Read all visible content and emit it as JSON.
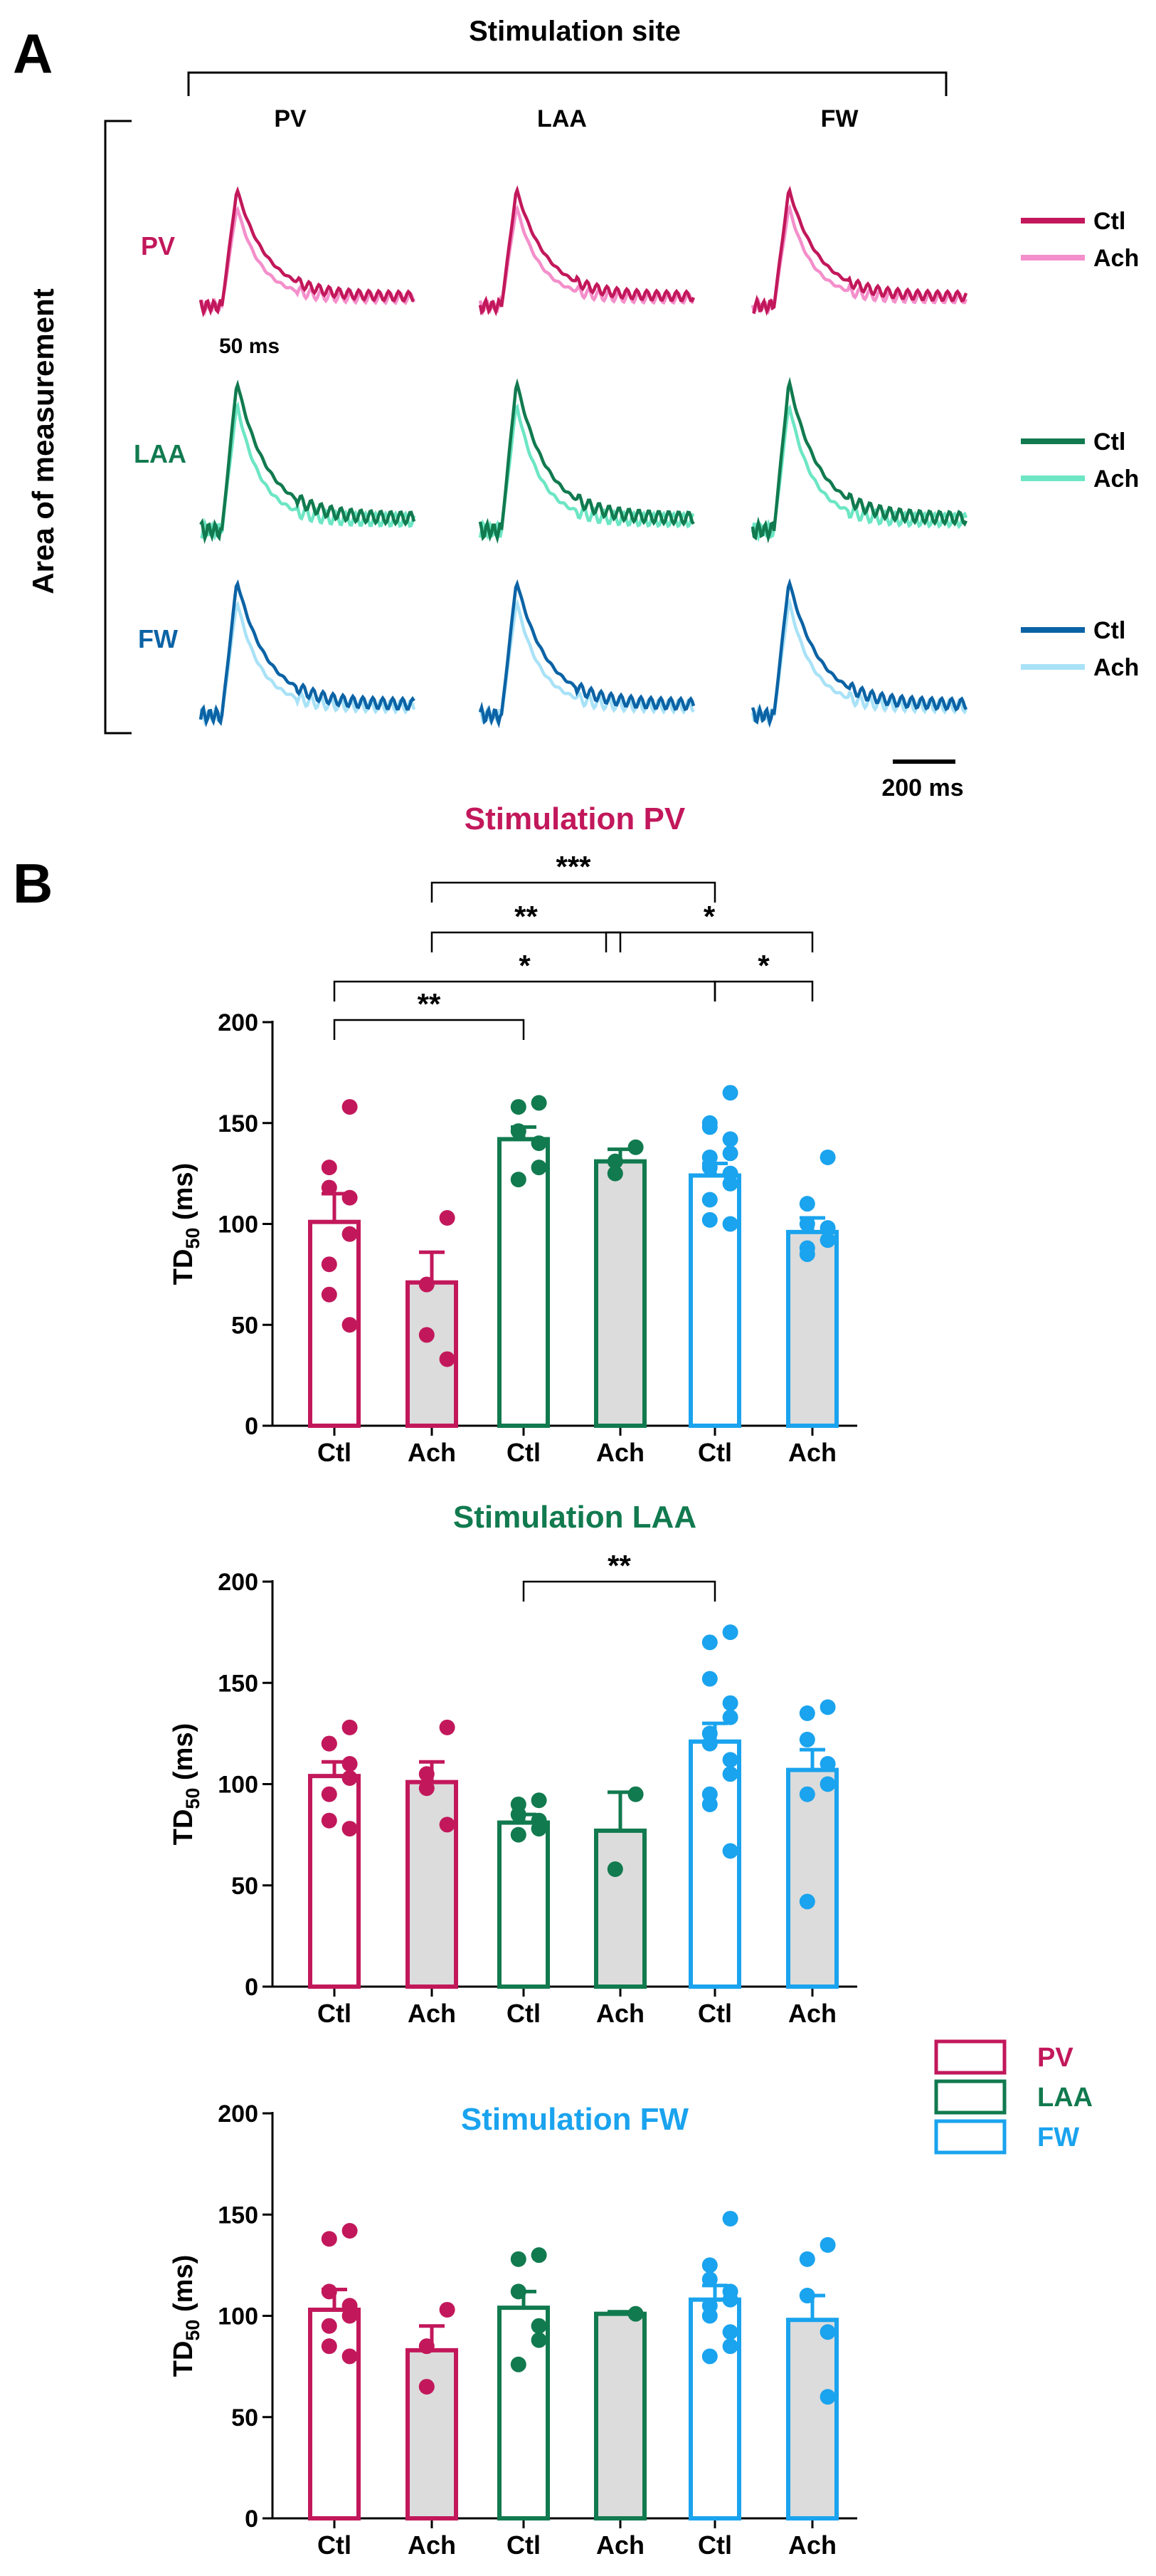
{
  "colors": {
    "pv": "#c2185b",
    "pv_light": "#f48fcb",
    "laa": "#117a4f",
    "laa_light": "#6de6c4",
    "fw": "#1aa3ee",
    "fw_dark": "#0b63a5",
    "fw_light": "#a9e2f7",
    "ach_fill": "#dcdcdc"
  },
  "panel_a": {
    "label": "A",
    "stim_header": "Stimulation site",
    "stim_sites": [
      "PV",
      "LAA",
      "FW"
    ],
    "measure_header": "Area of measurement",
    "rows": [
      "PV",
      "LAA",
      "FW"
    ],
    "legend": {
      "ctl": "Ctl",
      "ach": "Ach"
    },
    "time_label": "50 ms",
    "scale_label": "200 ms"
  },
  "panel_b": {
    "label": "B",
    "legend": [
      "PV",
      "LAA",
      "FW"
    ]
  },
  "chart_data": [
    {
      "type": "bar",
      "title": "Stimulation PV",
      "ylabel": "TD50 (ms)",
      "ylabel_main": "TD",
      "ylabel_sub": "50",
      "ylabel_unit": " (ms)",
      "ylim": [
        0,
        200
      ],
      "yticks": [
        0,
        50,
        100,
        150,
        200
      ],
      "categories": [
        "Ctl",
        "Ach",
        "Ctl",
        "Ach",
        "Ctl",
        "Ach"
      ],
      "groups": [
        "PV",
        "PV",
        "LAA",
        "LAA",
        "FW",
        "FW"
      ],
      "values": [
        101,
        71,
        142,
        131,
        124,
        96
      ],
      "sem": [
        14,
        15,
        6,
        6,
        6,
        7
      ],
      "points": [
        [
          158,
          128,
          118,
          113,
          95,
          80,
          65,
          50
        ],
        [
          103,
          70,
          45,
          33
        ],
        [
          160,
          158,
          146,
          140,
          128,
          122
        ],
        [
          138,
          131,
          125
        ],
        [
          165,
          150,
          148,
          142,
          135,
          133,
          128,
          125,
          120,
          112,
          102,
          100
        ],
        [
          133,
          110,
          100,
          98,
          92,
          88,
          85
        ]
      ],
      "significance": [
        {
          "from": 1,
          "to": 4,
          "label": "***"
        },
        {
          "from": 1,
          "to": 3,
          "label": "**"
        },
        {
          "from": 3,
          "to": 5,
          "label": "*"
        },
        {
          "from": 0,
          "to": 4,
          "label": "*"
        },
        {
          "from": 4,
          "to": 5,
          "label": "*"
        },
        {
          "from": 0,
          "to": 2,
          "label": "**"
        }
      ]
    },
    {
      "type": "bar",
      "title": "Stimulation LAA",
      "ylabel": "TD50 (ms)",
      "ylabel_main": "TD",
      "ylabel_sub": "50",
      "ylabel_unit": " (ms)",
      "ylim": [
        0,
        200
      ],
      "yticks": [
        0,
        50,
        100,
        150,
        200
      ],
      "categories": [
        "Ctl",
        "Ach",
        "Ctl",
        "Ach",
        "Ctl",
        "Ach"
      ],
      "groups": [
        "PV",
        "PV",
        "LAA",
        "LAA",
        "FW",
        "FW"
      ],
      "values": [
        104,
        101,
        81,
        77,
        121,
        107
      ],
      "sem": [
        7,
        10,
        4,
        19,
        9,
        10
      ],
      "points": [
        [
          128,
          120,
          120,
          110,
          103,
          95,
          82,
          78
        ],
        [
          128,
          105,
          98,
          80
        ],
        [
          92,
          90,
          85,
          82,
          78,
          75
        ],
        [
          95,
          58
        ],
        [
          175,
          170,
          152,
          140,
          133,
          125,
          120,
          112,
          105,
          95,
          90,
          67
        ],
        [
          138,
          135,
          122,
          110,
          100,
          95,
          42
        ]
      ],
      "significance": [
        {
          "from": 2,
          "to": 4,
          "label": "**"
        }
      ]
    },
    {
      "type": "bar",
      "title": "Stimulation FW",
      "ylabel": "TD50 (ms)",
      "ylabel_main": "TD",
      "ylabel_sub": "50",
      "ylabel_unit": " (ms)",
      "ylim": [
        0,
        200
      ],
      "yticks": [
        0,
        50,
        100,
        150,
        200
      ],
      "categories": [
        "Ctl",
        "Ach",
        "Ctl",
        "Ach",
        "Ctl",
        "Ach"
      ],
      "groups": [
        "PV",
        "PV",
        "LAA",
        "LAA",
        "FW",
        "FW"
      ],
      "values": [
        103,
        83,
        104,
        101,
        108,
        98
      ],
      "sem": [
        10,
        12,
        8,
        1,
        7,
        12
      ],
      "points": [
        [
          142,
          138,
          112,
          105,
          100,
          95,
          85,
          80
        ],
        [
          103,
          85,
          65
        ],
        [
          130,
          128,
          112,
          95,
          88,
          76
        ],
        [
          101
        ],
        [
          148,
          125,
          118,
          112,
          108,
          105,
          100,
          92,
          85,
          80
        ],
        [
          135,
          128,
          110,
          92,
          60
        ]
      ],
      "significance": []
    }
  ]
}
